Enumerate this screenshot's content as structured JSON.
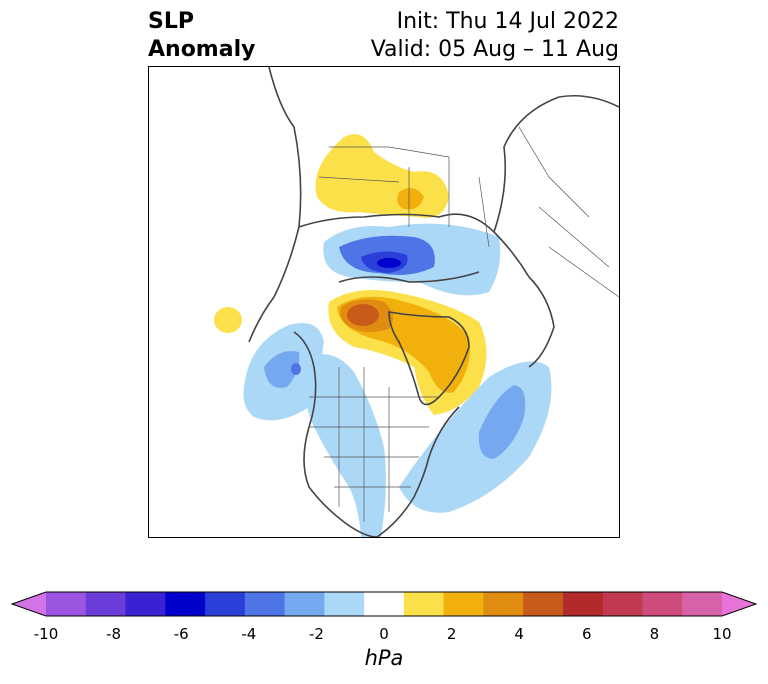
{
  "title": {
    "left_line1": "SLP",
    "left_line2": "Anomaly",
    "right_line1": "Init: Thu 14 Jul 2022",
    "right_line2": "Valid: 05 Aug – 11 Aug"
  },
  "colorbar": {
    "unit": "hPa",
    "ticks": [
      "-10",
      "-8",
      "-6",
      "-4",
      "-2",
      "0",
      "2",
      "4",
      "6",
      "8",
      "10"
    ],
    "colors": [
      "#d473e8",
      "#9c55e0",
      "#6a3cd8",
      "#3a22d4",
      "#0000cc",
      "#2a3ed8",
      "#4f74e6",
      "#76a8f0",
      "#acd8f8",
      "#ffffff",
      "#fbe04a",
      "#f2b00c",
      "#e08c10",
      "#c85a1a",
      "#b22a2a",
      "#c23a52",
      "#ce4c7c",
      "#d862a8",
      "#e873d8"
    ]
  },
  "map": {
    "projection": "north-polar-stereographic",
    "land_color": "#ffffff",
    "coast_color": "#444444"
  }
}
